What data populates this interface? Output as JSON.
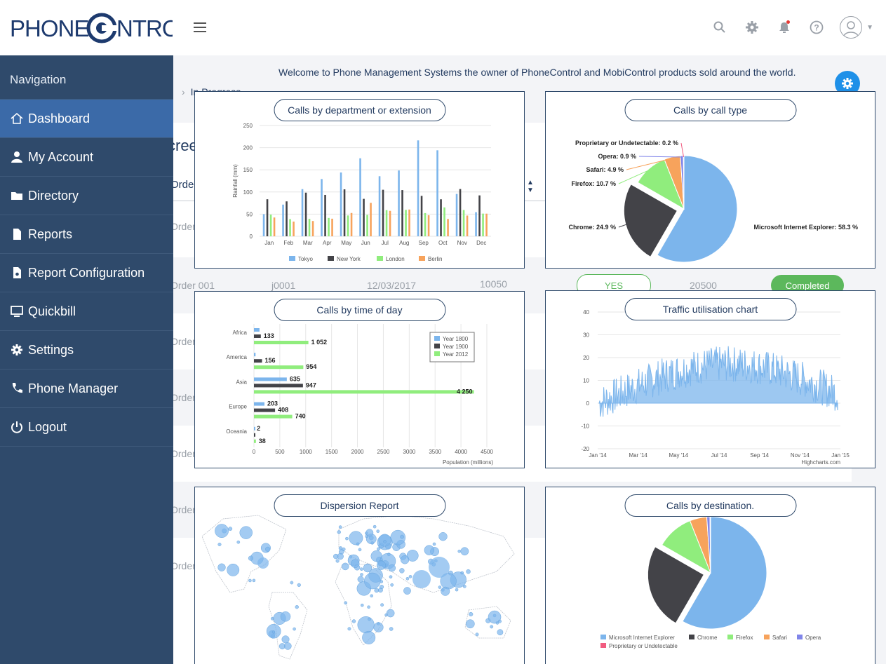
{
  "brand": {
    "name_left": "PHONE",
    "name_right": "NTROL"
  },
  "topbar": {
    "icons": [
      "search-icon",
      "gear-icon",
      "bell-icon",
      "help-icon",
      "user-avatar-icon"
    ]
  },
  "sidebar": {
    "title": "Navigation",
    "items": [
      {
        "label": "Dashboard",
        "icon": "home-icon",
        "active": true
      },
      {
        "label": "My Account",
        "icon": "user-icon"
      },
      {
        "label": "Directory",
        "icon": "folder-icon"
      },
      {
        "label": "Reports",
        "icon": "file-icon"
      },
      {
        "label": "Report Configuration",
        "icon": "file-gear-icon"
      },
      {
        "label": "Quickbill",
        "icon": "monitor-icon"
      },
      {
        "label": "Settings",
        "icon": "gear-icon"
      },
      {
        "label": "Phone Manager",
        "icon": "phone-icon"
      },
      {
        "label": "Logout",
        "icon": "power-icon"
      }
    ]
  },
  "welcome": "Welcome to Phone Management Systems the owner of PhoneControl and MobiControl products sold around the world.",
  "background": {
    "breadcrumb": "In Progress",
    "heading": "cree",
    "col_order": "Order",
    "row_highlight": {
      "order": "Order 001",
      "job": "j0001",
      "date": "12/03/2017",
      "amount": "10050",
      "flag": "YES",
      "total": "20500",
      "status": "Completed"
    },
    "row_label": "Order"
  },
  "cards": {
    "dept": "Calls by department or extension",
    "type": "Calls by call  type",
    "time": "Calls by time of day",
    "traffic": "Traffic utilisation chart",
    "dispersion": "Dispersion Report",
    "destination": "Calls by destination."
  },
  "chart_data": [
    {
      "type": "bar",
      "title": "Calls by department or extension",
      "ylabel": "Rainfall (mm)",
      "ylim": [
        0,
        250
      ],
      "categories": [
        "Jan",
        "Feb",
        "Mar",
        "Apr",
        "May",
        "Jun",
        "Jul",
        "Aug",
        "Sep",
        "Oct",
        "Nov",
        "Dec"
      ],
      "series": [
        {
          "name": "Tokyo",
          "color": "#7cb5ec",
          "values": [
            49.9,
            71.5,
            106.4,
            129.2,
            144.0,
            176.0,
            135.6,
            148.5,
            216.4,
            194.1,
            95.6,
            54.4
          ]
        },
        {
          "name": "New York",
          "color": "#434348",
          "values": [
            83.6,
            78.8,
            98.5,
            93.4,
            106.0,
            84.5,
            105.0,
            104.3,
            91.2,
            83.5,
            106.6,
            92.3
          ]
        },
        {
          "name": "London",
          "color": "#90ed7d",
          "values": [
            48.9,
            38.8,
            39.3,
            41.4,
            47.0,
            48.3,
            59.0,
            59.6,
            52.4,
            65.2,
            59.3,
            51.2
          ]
        },
        {
          "name": "Berlin",
          "color": "#f7a35c",
          "values": [
            42.4,
            33.2,
            34.5,
            39.7,
            52.6,
            75.5,
            57.4,
            60.4,
            47.6,
            39.1,
            46.8,
            51.1
          ]
        }
      ]
    },
    {
      "type": "pie",
      "title": "Calls by call  type",
      "slices": [
        {
          "name": "Microsoft Internet Explorer",
          "value": 58.3,
          "label": "Microsoft Internet Explorer: 58.3 %",
          "color": "#7cb5ec"
        },
        {
          "name": "Chrome",
          "value": 24.9,
          "label": "Chrome: 24.9 %",
          "color": "#434348",
          "exploded": true
        },
        {
          "name": "Firefox",
          "value": 10.7,
          "label": "Firefox: 10.7 %",
          "color": "#90ed7d"
        },
        {
          "name": "Safari",
          "value": 4.9,
          "label": "Safari: 4.9 %",
          "color": "#f7a35c"
        },
        {
          "name": "Opera",
          "value": 0.9,
          "label": "Opera: 0.9 %",
          "color": "#8085e9"
        },
        {
          "name": "Proprietary or Undetectable",
          "value": 0.2,
          "label": "Proprietary or Undetectable: 0.2 %",
          "color": "#f15c80"
        }
      ]
    },
    {
      "type": "bar",
      "orientation": "horizontal",
      "title": "Calls by time of day",
      "xlabel": "Population (millions)",
      "xlim": [
        0,
        4500
      ],
      "xticks": [
        "0",
        "500",
        "1000",
        "1500",
        "2000",
        "2500",
        "3000",
        "3500",
        "4000",
        "4500"
      ],
      "categories": [
        "Africa",
        "America",
        "Asia",
        "Europe",
        "Oceania"
      ],
      "series": [
        {
          "name": "Year 1800",
          "color": "#7cb5ec",
          "values": [
            107,
            31,
            635,
            203,
            2
          ]
        },
        {
          "name": "Year 1900",
          "color": "#434348",
          "values": [
            133,
            156,
            947,
            408,
            6
          ]
        },
        {
          "name": "Year 2012",
          "color": "#90ed7d",
          "values": [
            1052,
            954,
            4250,
            740,
            38
          ]
        }
      ],
      "data_labels": [
        [
          "",
          "133",
          "1 052"
        ],
        [
          "",
          "156",
          "954"
        ],
        [
          "635",
          "947",
          "4 250"
        ],
        [
          "203",
          "408",
          "740"
        ],
        [
          "2",
          "",
          "38"
        ]
      ]
    },
    {
      "type": "area",
      "title": "Traffic utilisation chart",
      "ylim": [
        -20,
        40
      ],
      "yticks": [
        "40",
        "30",
        "20",
        "10",
        "0",
        "-10",
        "-20"
      ],
      "xticks": [
        "Jan '14",
        "Mar '14",
        "May '14",
        "Jul '14",
        "Sep '14",
        "Nov '14",
        "Jan '15"
      ],
      "credit": "Highcharts.com",
      "color": "#7cb5ec"
    },
    {
      "type": "pie",
      "title": "Calls by destination.",
      "slices": [
        {
          "name": "Microsoft Internet Explorer",
          "value": 58.3,
          "color": "#7cb5ec"
        },
        {
          "name": "Chrome",
          "value": 24.9,
          "color": "#434348",
          "exploded": true
        },
        {
          "name": "Firefox",
          "value": 10.7,
          "color": "#90ed7d"
        },
        {
          "name": "Safari",
          "value": 4.9,
          "color": "#f7a35c"
        },
        {
          "name": "Opera",
          "value": 0.9,
          "color": "#8085e9"
        },
        {
          "name": "Proprietary or Undetectable",
          "value": 0.2,
          "color": "#f15c80"
        }
      ]
    }
  ]
}
